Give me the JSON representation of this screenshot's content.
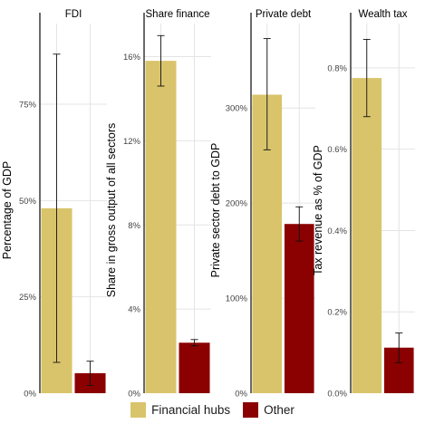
{
  "colors": {
    "financial_hubs": "#d9c46b",
    "other": "#8b0000",
    "gridline": "#e4e4e4",
    "axis": "#1a1a1a"
  },
  "legend": {
    "financial_hubs": "Financial hubs",
    "other": "Other"
  },
  "chart_data": [
    {
      "type": "bar",
      "title": "FDI",
      "ylabel": "Percentage of GDP",
      "categories": [
        "Financial hubs",
        "Other"
      ],
      "values": [
        48.0,
        5.2
      ],
      "error_low": [
        8.0,
        2.0
      ],
      "error_high": [
        88.0,
        8.3
      ],
      "ylim": [
        0,
        95
      ],
      "ticks": [
        0,
        25,
        50,
        75
      ],
      "tick_labels": [
        "0%",
        "25%",
        "50%",
        "75%"
      ]
    },
    {
      "type": "bar",
      "title": "Share finance",
      "ylabel": "Share in gross output of all sectors",
      "categories": [
        "Financial hubs",
        "Other"
      ],
      "values": [
        15.8,
        2.4
      ],
      "error_low": [
        14.6,
        2.25
      ],
      "error_high": [
        17.0,
        2.55
      ],
      "ylim": [
        0,
        17.4
      ],
      "ticks": [
        0,
        4,
        8,
        12,
        16
      ],
      "tick_labels": [
        "0%",
        "4%",
        "8%",
        "12%",
        "16%"
      ]
    },
    {
      "type": "bar",
      "title": "Private debt",
      "ylabel": "Private sector debt to GDP",
      "categories": [
        "Financial hubs",
        "Other"
      ],
      "values": [
        314,
        178
      ],
      "error_low": [
        256,
        160
      ],
      "error_high": [
        373,
        196
      ],
      "ylim": [
        0,
        385
      ],
      "ticks": [
        0,
        100,
        200,
        300
      ],
      "tick_labels": [
        "0%",
        "100%",
        "200%",
        "300%"
      ]
    },
    {
      "type": "bar",
      "title": "Wealth tax",
      "ylabel": "Tax revenue as % of GDP",
      "categories": [
        "Financial hubs",
        "Other"
      ],
      "values": [
        0.775,
        0.112
      ],
      "error_low": [
        0.68,
        0.075
      ],
      "error_high": [
        0.87,
        0.148
      ],
      "ylim": [
        0,
        0.9
      ],
      "ticks": [
        0,
        0.2,
        0.4,
        0.6,
        0.8
      ],
      "tick_labels": [
        "0.0%",
        "0.2%",
        "0.4%",
        "0.6%",
        "0.8%"
      ]
    }
  ]
}
